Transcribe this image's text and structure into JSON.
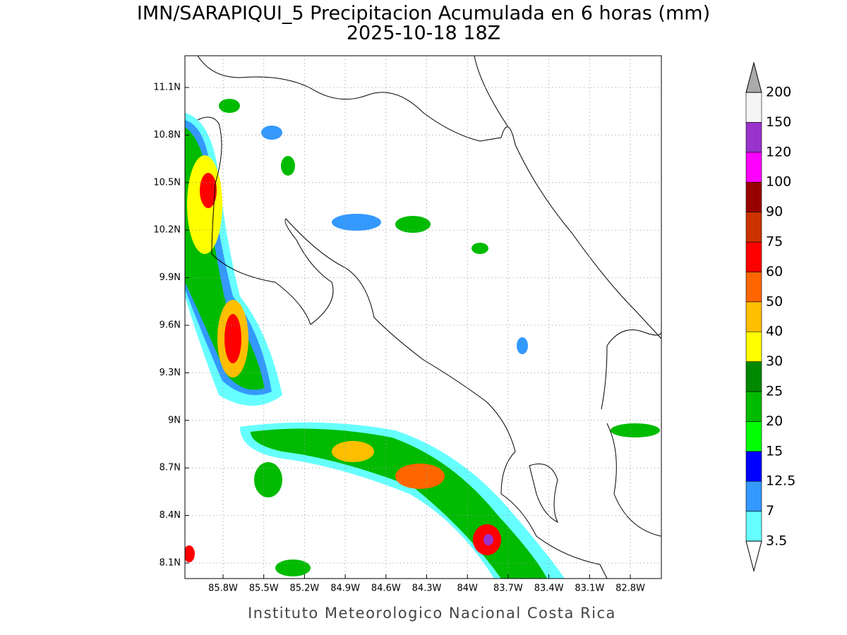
{
  "title": "IMN/SARAPIQUI_5 Precipitacion Acumulada en 6 horas (mm)",
  "subtitle": "2025-10-18 18Z",
  "lon_labels": [
    "85.8W",
    "85.5W",
    "85.2W",
    "84.9W",
    "84.6W",
    "84.3W",
    "84W",
    "83.7W",
    "83.4W",
    "83.1W",
    "82.8W"
  ],
  "lat_labels": [
    "11.1N",
    "10.8N",
    "10.5N",
    "10.2N",
    "9.9N",
    "9.6N",
    "9.3N",
    "9N",
    "8.7N",
    "8.4N",
    "8.1N"
  ],
  "colorbar": {
    "levels": [
      3.5,
      7,
      12.5,
      15,
      20,
      25,
      30,
      40,
      50,
      60,
      75,
      90,
      100,
      120,
      150,
      200
    ],
    "colors": [
      "#66ffff",
      "#3399ff",
      "#0000ff",
      "#00ff00",
      "#00bb00",
      "#008800",
      "#ffff00",
      "#ffbf00",
      "#ff6600",
      "#ff0000",
      "#cc3300",
      "#990000",
      "#ff00ff",
      "#9933cc",
      "#f5f5f5"
    ],
    "over_color": "#aaaaaa",
    "under_color": "#ffffff"
  },
  "footer": "Instituto Meteorologico Nacional Costa Rica"
}
